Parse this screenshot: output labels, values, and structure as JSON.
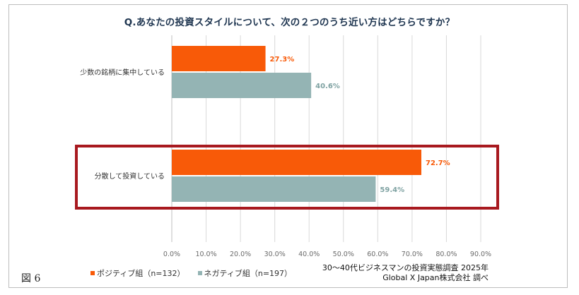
{
  "title": "Q.あなたの投資スタイルについて、次の２つのうち近い方はどちらですか？",
  "figure_label": "図 6",
  "source": {
    "line1": "30～40代ビジネスマンの投資実態調査 2025年",
    "line2": "Global X Japan株式会社  調べ"
  },
  "colors": {
    "positive": "#f85a08",
    "negative": "#94b4b4",
    "highlight": "#a8191f",
    "grid": "#d9d9d9",
    "axis_text": "#6b6b6b"
  },
  "chart_data": {
    "type": "bar",
    "orientation": "horizontal",
    "categories": [
      "少数の銘柄に集中している",
      "分散して投資している"
    ],
    "series": [
      {
        "name": "ポジティブ組（n=132）",
        "values": [
          27.3,
          72.7
        ],
        "labels": [
          "27.3%",
          "72.7%"
        ]
      },
      {
        "name": "ネガティブ組（n=197）",
        "values": [
          40.6,
          59.4
        ],
        "labels": [
          "40.6%",
          "59.4%"
        ]
      }
    ],
    "xlim": [
      0,
      90
    ],
    "ticks": [
      "0.0%",
      "10.0%",
      "20.0%",
      "30.0%",
      "40.0%",
      "50.0%",
      "60.0%",
      "70.0%",
      "80.0%",
      "90.0%"
    ],
    "tick_values": [
      0,
      10,
      20,
      30,
      40,
      50,
      60,
      70,
      80,
      90
    ],
    "highlighted_category": "分散して投資している",
    "legend_position": "bottom-left"
  }
}
